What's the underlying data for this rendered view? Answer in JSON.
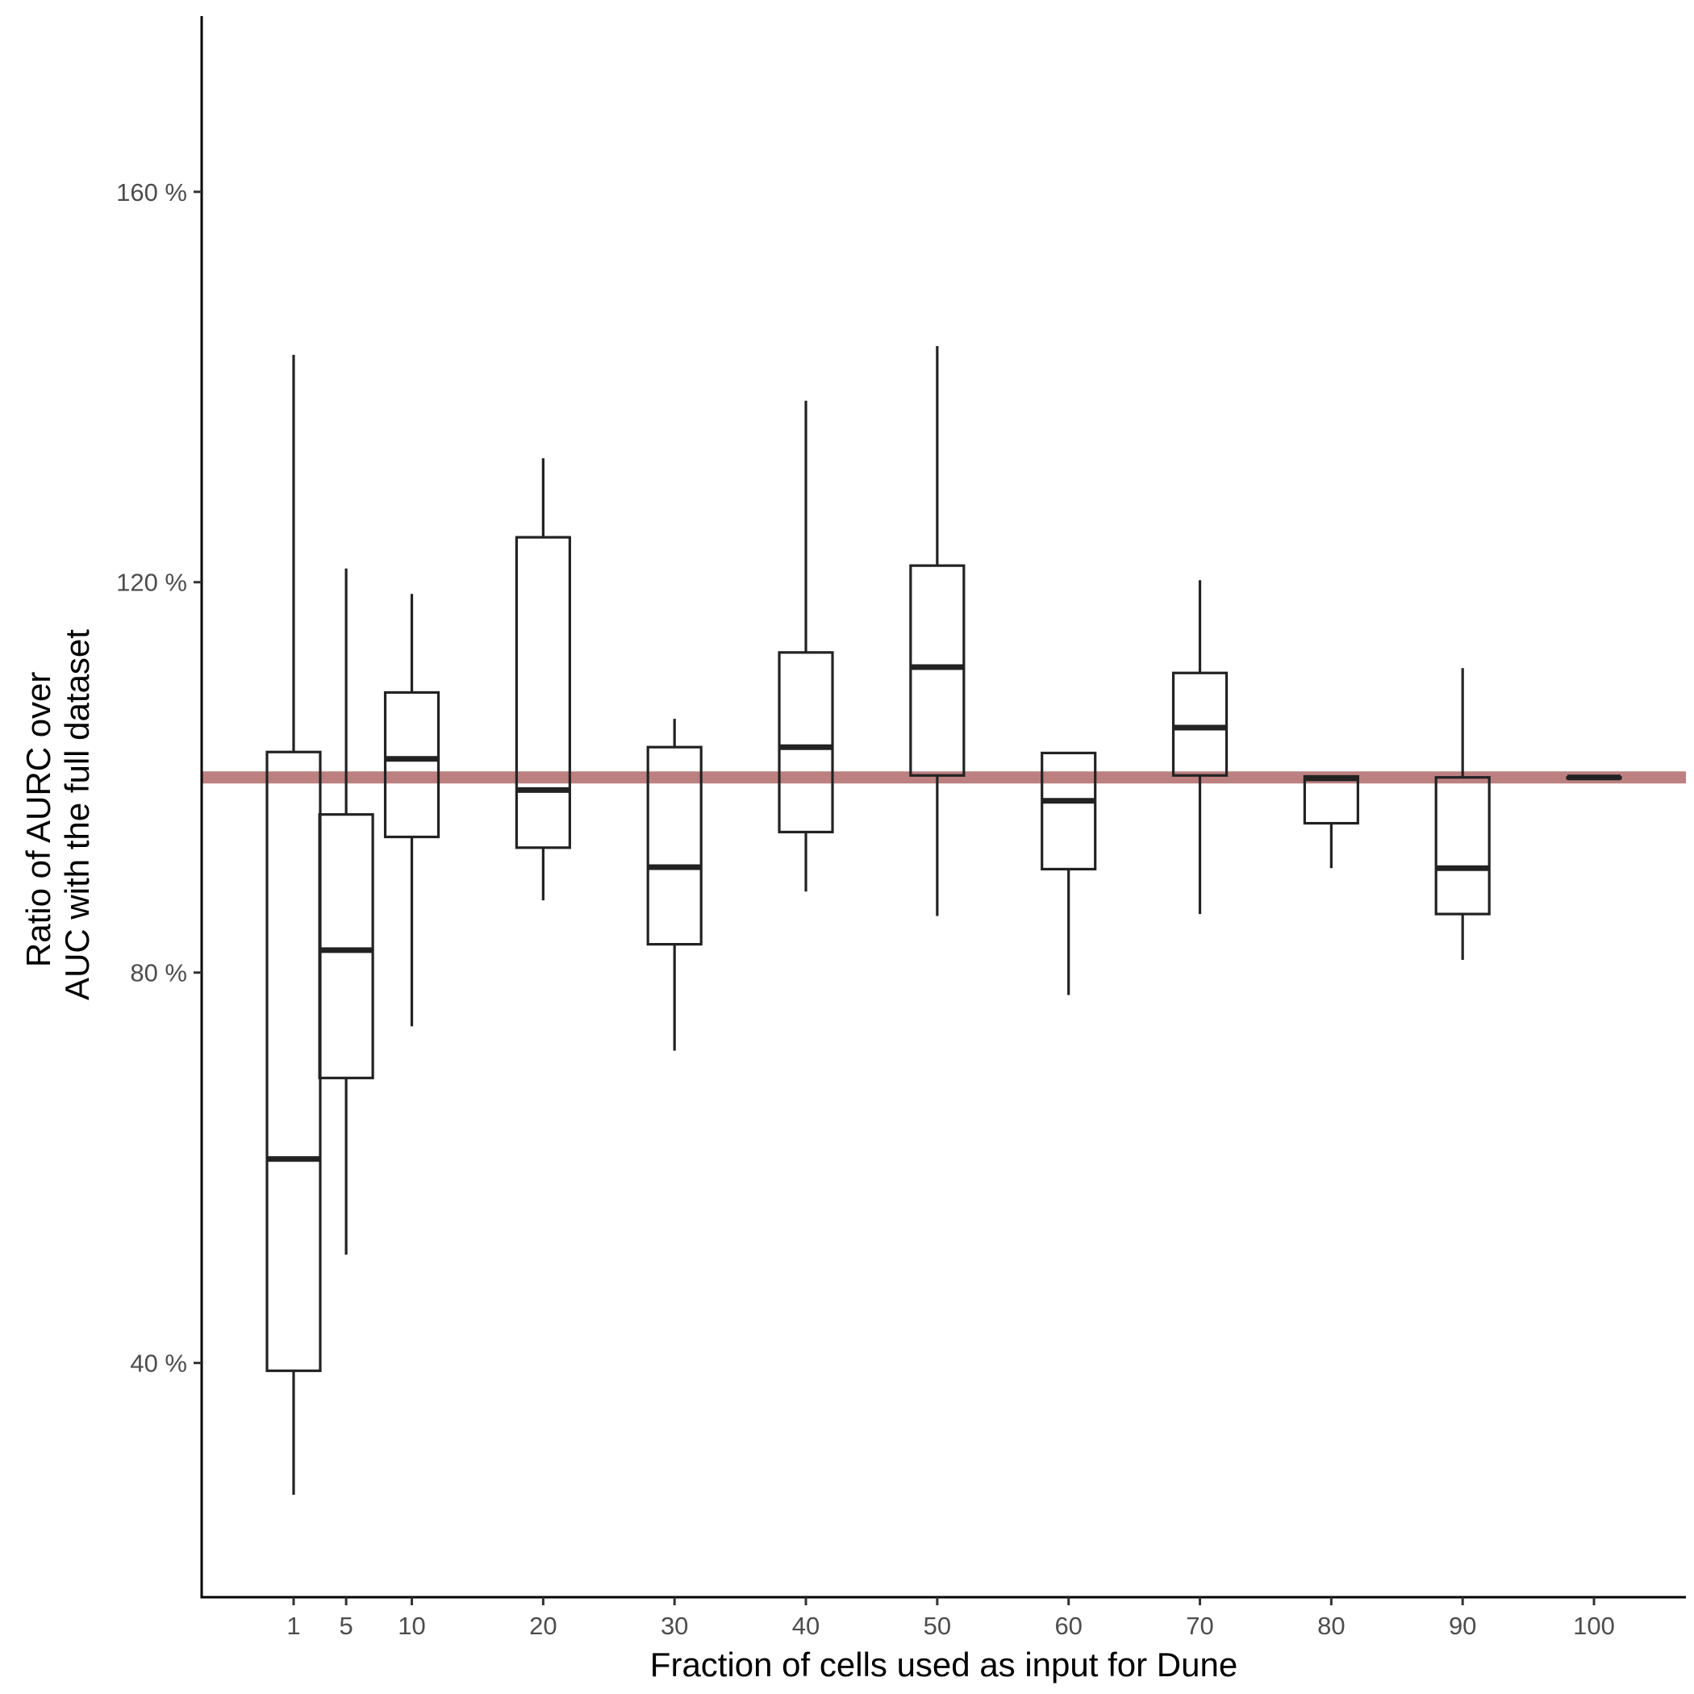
{
  "chart_data": {
    "type": "box",
    "xlabel": "Fraction of cells used as input for Dune",
    "ylabel_lines": [
      "Ratio of AURC over",
      "AUC with the full dataset"
    ],
    "ylim": [
      16,
      178
    ],
    "y_ticks": [
      {
        "value": 40,
        "label": "40 %"
      },
      {
        "value": 80,
        "label": "80 %"
      },
      {
        "value": 120,
        "label": "120 %"
      },
      {
        "value": 160,
        "label": "160 %"
      }
    ],
    "x_range": [
      -6,
      107
    ],
    "x_ticks": [
      1,
      5,
      10,
      20,
      30,
      40,
      50,
      60,
      70,
      80,
      90,
      100
    ],
    "reference_line": {
      "y": 100,
      "color": "#bc8080"
    },
    "box_color": "#222222",
    "boxes": [
      {
        "x": 1,
        "low": 26.5,
        "q1": 39.2,
        "median": 60.9,
        "q3": 102.6,
        "high": 143.3
      },
      {
        "x": 5,
        "low": 51.1,
        "q1": 69.2,
        "median": 82.3,
        "q3": 96.2,
        "high": 121.4
      },
      {
        "x": 10,
        "low": 74.5,
        "q1": 93.9,
        "median": 101.9,
        "q3": 108.7,
        "high": 118.8
      },
      {
        "x": 20,
        "low": 87.4,
        "q1": 92.8,
        "median": 98.7,
        "q3": 124.6,
        "high": 132.7
      },
      {
        "x": 30,
        "low": 72.0,
        "q1": 82.9,
        "median": 90.8,
        "q3": 103.1,
        "high": 106.0
      },
      {
        "x": 40,
        "low": 88.3,
        "q1": 94.4,
        "median": 103.1,
        "q3": 112.8,
        "high": 138.6
      },
      {
        "x": 50,
        "low": 85.8,
        "q1": 100.2,
        "median": 111.3,
        "q3": 121.7,
        "high": 144.2
      },
      {
        "x": 60,
        "low": 77.7,
        "q1": 90.6,
        "median": 97.6,
        "q3": 102.5,
        "high": 102.5
      },
      {
        "x": 70,
        "low": 86.0,
        "q1": 100.2,
        "median": 105.1,
        "q3": 110.7,
        "high": 120.2
      },
      {
        "x": 80,
        "low": 90.7,
        "q1": 95.3,
        "median": 99.9,
        "q3": 100.1,
        "high": 100.1
      },
      {
        "x": 90,
        "low": 81.3,
        "q1": 86.0,
        "median": 90.7,
        "q3": 100.0,
        "high": 111.2
      },
      {
        "x": 100,
        "low": 100.0,
        "q1": 100.0,
        "median": 100.0,
        "q3": 100.0,
        "high": 100.0
      }
    ]
  }
}
